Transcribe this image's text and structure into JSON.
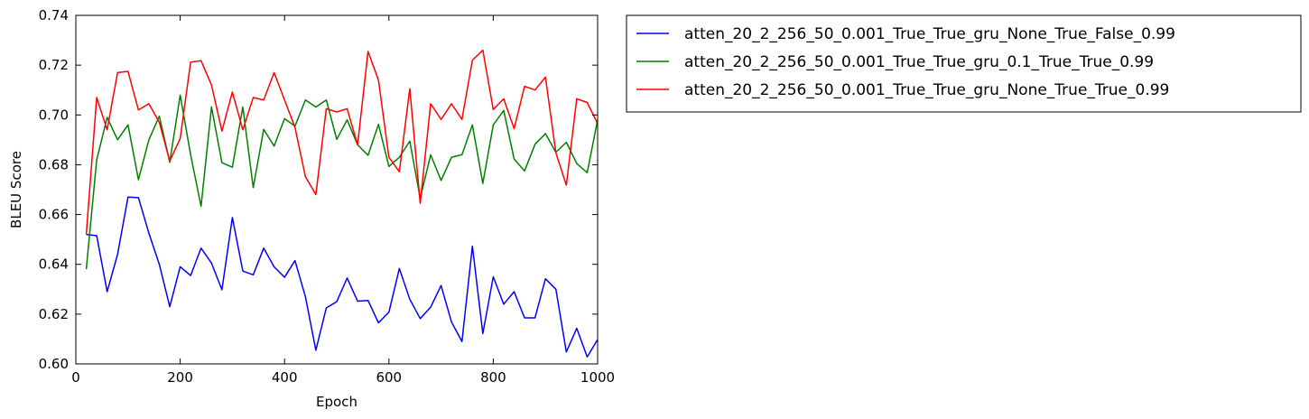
{
  "chart_data": {
    "type": "line",
    "title": "",
    "xlabel": "Epoch",
    "ylabel": "BLEU Score",
    "xlim": [
      0,
      1000
    ],
    "ylim": [
      0.6,
      0.74
    ],
    "xticks": [
      0,
      200,
      400,
      600,
      800,
      1000
    ],
    "yticks": [
      0.6,
      0.62,
      0.64,
      0.66,
      0.68,
      0.7,
      0.72,
      0.74
    ],
    "xtick_labels": [
      "0",
      "200",
      "400",
      "600",
      "800",
      "1000"
    ],
    "ytick_labels": [
      "0.60",
      "0.62",
      "0.64",
      "0.66",
      "0.68",
      "0.70",
      "0.72",
      "0.74"
    ],
    "grid": false,
    "legend_position": "outside-top-right",
    "x": [
      20,
      40,
      60,
      80,
      100,
      120,
      140,
      160,
      180,
      200,
      220,
      240,
      260,
      280,
      300,
      320,
      340,
      360,
      380,
      400,
      420,
      440,
      460,
      480,
      500,
      520,
      540,
      560,
      580,
      600,
      620,
      640,
      660,
      680,
      700,
      720,
      740,
      760,
      780,
      800,
      820,
      840,
      860,
      880,
      900,
      920,
      940,
      960,
      980,
      1000
    ],
    "series": [
      {
        "name": "atten_20_2_256_50_0.001_True_True_gru_None_True_False_0.99",
        "color": "#0000ff",
        "values": [
          0.652,
          0.6515,
          0.629,
          0.644,
          0.667,
          0.6668,
          0.6525,
          0.64,
          0.623,
          0.639,
          0.6355,
          0.6465,
          0.6405,
          0.6298,
          0.6588,
          0.6373,
          0.6358,
          0.6465,
          0.639,
          0.6348,
          0.6415,
          0.627,
          0.6055,
          0.6225,
          0.625,
          0.6345,
          0.6252,
          0.6255,
          0.6165,
          0.6208,
          0.6383,
          0.626,
          0.6182,
          0.6228,
          0.6315,
          0.6168,
          0.609,
          0.6473,
          0.6122,
          0.635,
          0.624,
          0.629,
          0.6185,
          0.6185,
          0.6342,
          0.63,
          0.6048,
          0.6143,
          0.6028,
          0.6098
        ]
      },
      {
        "name": "atten_20_2_256_50_0.001_True_True_gru_0.1_True_True_0.99",
        "color": "#008000",
        "values": [
          0.638,
          0.682,
          0.699,
          0.69,
          0.696,
          0.674,
          0.69,
          0.6995,
          0.681,
          0.708,
          0.684,
          0.6633,
          0.7032,
          0.6808,
          0.679,
          0.7032,
          0.6708,
          0.6942,
          0.6875,
          0.6985,
          0.6955,
          0.706,
          0.7032,
          0.706,
          0.6902,
          0.698,
          0.688,
          0.6838,
          0.6962,
          0.6793,
          0.683,
          0.6895,
          0.6665,
          0.684,
          0.6737,
          0.683,
          0.684,
          0.696,
          0.6725,
          0.696,
          0.7018,
          0.6823,
          0.6775,
          0.6882,
          0.6925,
          0.685,
          0.689,
          0.6805,
          0.6768,
          0.698
        ]
      },
      {
        "name": "atten_20_2_256_50_0.001_True_True_gru_None_True_True_0.99",
        "color": "#ff0000",
        "values": [
          0.652,
          0.707,
          0.694,
          0.717,
          0.7175,
          0.702,
          0.7045,
          0.697,
          0.6815,
          0.6905,
          0.7212,
          0.7218,
          0.712,
          0.6935,
          0.7092,
          0.694,
          0.707,
          0.706,
          0.717,
          0.706,
          0.695,
          0.6752,
          0.668,
          0.7025,
          0.7012,
          0.7025,
          0.688,
          0.7255,
          0.714,
          0.683,
          0.6772,
          0.7105,
          0.6645,
          0.7045,
          0.6982,
          0.7045,
          0.6982,
          0.722,
          0.726,
          0.7022,
          0.7065,
          0.6945,
          0.7115,
          0.71,
          0.7152,
          0.6848,
          0.6718,
          0.7065,
          0.705,
          0.6965
        ]
      }
    ]
  }
}
